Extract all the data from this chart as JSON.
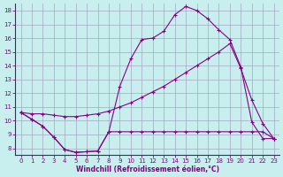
{
  "background_color": "#c8eeee",
  "line_color": "#880088",
  "grid_color": "#a0a8c0",
  "xlabel": "Windchill (Refroidissement éolien,°C)",
  "xlim": [
    -0.5,
    23.5
  ],
  "ylim": [
    7.5,
    18.5
  ],
  "xticks": [
    0,
    1,
    2,
    3,
    4,
    5,
    6,
    7,
    8,
    9,
    10,
    11,
    12,
    13,
    14,
    15,
    16,
    17,
    18,
    19,
    20,
    21,
    22,
    23
  ],
  "yticks": [
    8,
    9,
    10,
    11,
    12,
    13,
    14,
    15,
    16,
    17,
    18
  ],
  "line1_x": [
    0,
    1,
    2,
    3,
    4,
    5,
    6,
    7,
    8,
    9,
    10,
    11,
    12,
    13,
    14,
    15,
    16,
    17,
    18,
    19,
    20,
    21,
    22,
    23
  ],
  "line1_y": [
    10.6,
    10.1,
    9.6,
    8.8,
    7.9,
    7.7,
    7.75,
    7.8,
    9.2,
    9.2,
    9.2,
    9.2,
    9.2,
    9.2,
    9.2,
    9.2,
    9.2,
    9.2,
    9.2,
    9.2,
    9.2,
    9.2,
    9.2,
    8.7
  ],
  "line2_x": [
    0,
    1,
    2,
    3,
    4,
    5,
    6,
    7,
    8,
    9,
    10,
    11,
    12,
    13,
    14,
    15,
    16,
    17,
    18,
    19,
    20,
    21,
    22,
    23
  ],
  "line2_y": [
    10.6,
    10.1,
    9.6,
    8.8,
    7.9,
    7.7,
    7.75,
    7.8,
    9.2,
    12.5,
    14.5,
    15.9,
    16.0,
    16.5,
    17.7,
    18.3,
    18.0,
    17.4,
    16.6,
    15.9,
    13.9,
    9.9,
    8.7,
    8.7
  ],
  "line3_x": [
    0,
    1,
    2,
    3,
    4,
    5,
    6,
    7,
    8,
    9,
    10,
    11,
    12,
    13,
    14,
    15,
    16,
    17,
    18,
    19,
    20,
    21,
    22,
    23
  ],
  "line3_y": [
    10.6,
    10.5,
    10.5,
    10.4,
    10.3,
    10.3,
    10.4,
    10.5,
    10.7,
    11.0,
    11.3,
    11.7,
    12.1,
    12.5,
    13.0,
    13.5,
    14.0,
    14.5,
    15.0,
    15.6,
    13.8,
    11.5,
    9.8,
    8.7
  ]
}
